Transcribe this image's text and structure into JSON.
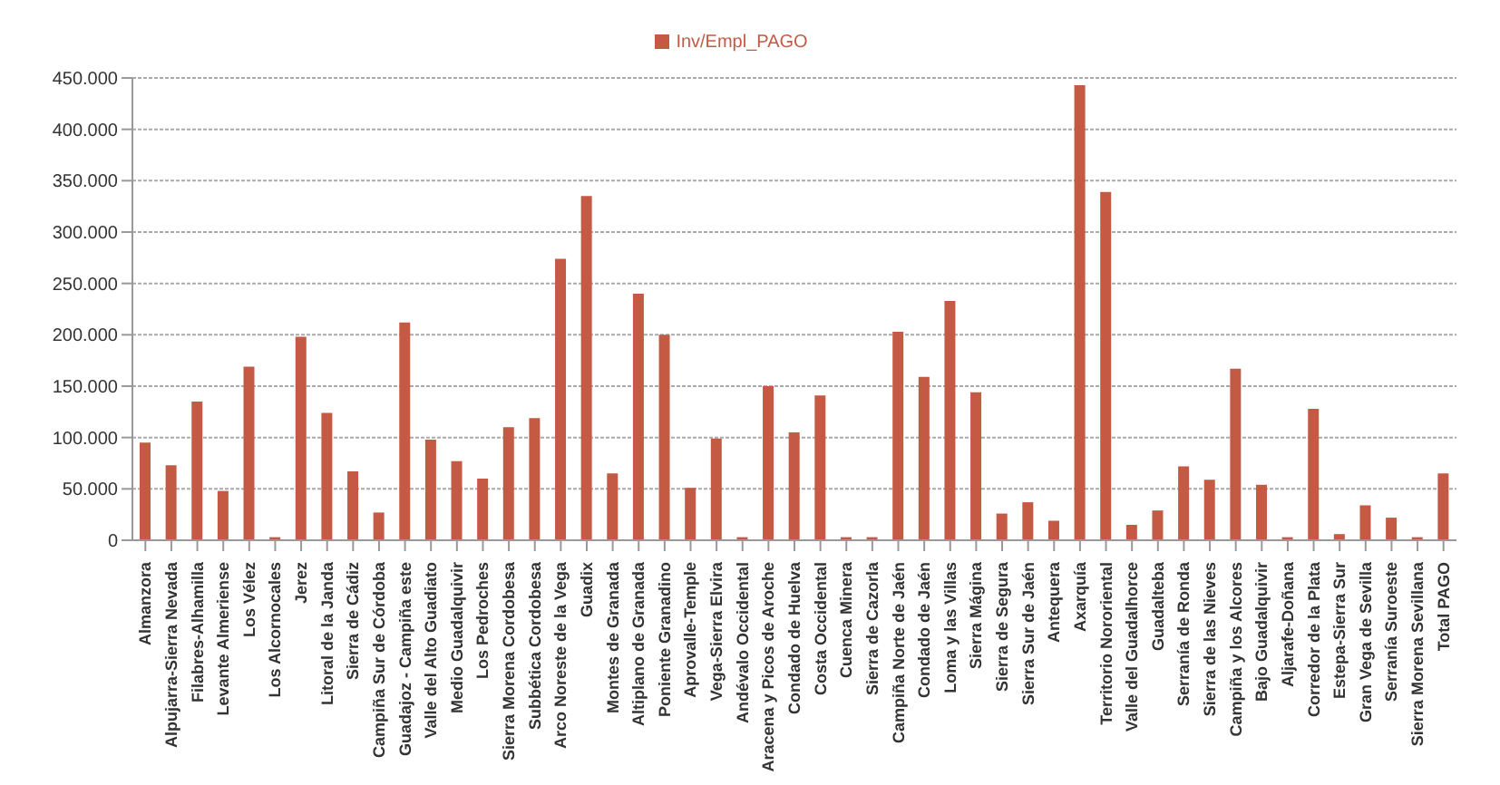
{
  "chart_data": {
    "type": "bar",
    "categories": [
      "Almanzora",
      "Alpujarra-Sierra Nevada",
      "Filabres-Alhamilla",
      "Levante Almeriense",
      "Los Vélez",
      "Los Alcornocales",
      "Jerez",
      "Litoral de la Janda",
      "Sierra de Cádiz",
      "Campiña Sur de Córdoba",
      "Guadajoz - Campiña este",
      "Valle del Alto Guadiato",
      "Medio Guadalquivir",
      "Los Pedroches",
      "Sierra Morena Cordobesa",
      "Subbética Cordobesa",
      "Arco Noreste de la Vega",
      "Guadix",
      "Montes de Granada",
      "Altiplano de Granada",
      "Poniente Granadino",
      "Aprovalle-Temple",
      "Vega-Sierra Elvira",
      "Andévalo Occidental",
      "Aracena y Picos de Aroche",
      "Condado de Huelva",
      "Costa Occidental",
      "Cuenca Minera",
      "Sierra de Cazorla",
      "Campiña Norte de Jaén",
      "Condado de Jaén",
      "Loma y las Villas",
      "Sierra Mágina",
      "Sierra de Segura",
      "Sierra Sur de Jaén",
      "Antequera",
      "Axarquía",
      "Territorio Nororiental",
      "Valle del Guadalhorce",
      "Guadalteba",
      "Serranía de Ronda",
      "Sierra de las Nieves",
      "Campiña y los Alcores",
      "Bajo Guadalquivir",
      "Aljarafe-Doñana",
      "Corredor de la Plata",
      "Estepa-Sierra Sur",
      "Gran Vega de Sevilla",
      "Serranía Suroeste",
      "Sierra Morena Sevillana",
      "Total PAGO"
    ],
    "series": [
      {
        "name": "Inv/Empl_PAGO",
        "color": "#c55a44",
        "values": [
          95000,
          73000,
          135000,
          48000,
          169000,
          3000,
          198000,
          124000,
          67000,
          27000,
          212000,
          98000,
          77000,
          60000,
          110000,
          119000,
          274000,
          335000,
          65000,
          240000,
          200000,
          51000,
          99000,
          3000,
          150000,
          105000,
          141000,
          3000,
          3000,
          203000,
          159000,
          233000,
          144000,
          26000,
          37000,
          19000,
          443000,
          339000,
          15000,
          29000,
          72000,
          59000,
          167000,
          54000,
          3000,
          128000,
          6000,
          34000,
          22000,
          3000,
          65000
        ]
      }
    ],
    "ylim": [
      0,
      450000
    ],
    "yticks": [
      {
        "value": 0,
        "label": "0"
      },
      {
        "value": 50000,
        "label": "50.000"
      },
      {
        "value": 100000,
        "label": "100.000"
      },
      {
        "value": 150000,
        "label": "150.000"
      },
      {
        "value": 200000,
        "label": "200.000"
      },
      {
        "value": 250000,
        "label": "250.000"
      },
      {
        "value": 300000,
        "label": "300.000"
      },
      {
        "value": 350000,
        "label": "350.000"
      },
      {
        "value": 400000,
        "label": "400.000"
      },
      {
        "value": 450000,
        "label": "450.000"
      }
    ],
    "grid": "y",
    "legend": "top"
  }
}
